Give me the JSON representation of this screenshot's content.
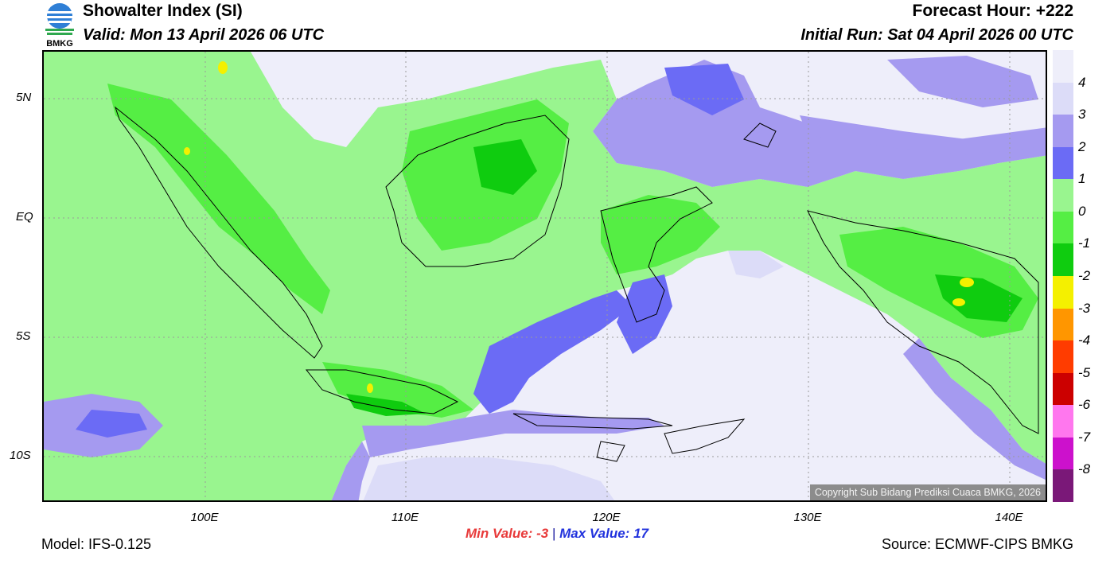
{
  "header": {
    "title": "Showalter Index (SI)",
    "valid": "Valid: Mon 13 April 2026 06 UTC",
    "forecast_hour": "Forecast Hour: +222",
    "initial_run": "Initial Run: Sat 04 April 2026 00 UTC",
    "logo_text": "BMKG"
  },
  "map": {
    "lat_labels": [
      "5N",
      "EQ",
      "5S",
      "10S"
    ],
    "lon_labels": [
      "100E",
      "110E",
      "120E",
      "130E",
      "140E"
    ],
    "copyright": "Copyright Sub Bidang Prediksi Cuaca BMKG, 2026"
  },
  "legend": {
    "labels": [
      "4",
      "3",
      "2",
      "1",
      "0",
      "-1",
      "-2",
      "-3",
      "-4",
      "-5",
      "-6",
      "-7",
      "-8"
    ],
    "colors": [
      "#eeeefa",
      "#dcdcf8",
      "#a59af0",
      "#6b6bf5",
      "#99f58f",
      "#55ee44",
      "#0fcc0f",
      "#f4f000",
      "#ff9600",
      "#ff3c00",
      "#cc0000",
      "#ff77ee",
      "#cc11cc",
      "#7a1878"
    ]
  },
  "stats": {
    "min_label": "Min Value:",
    "min_value": "-3",
    "separator": "|",
    "max_label": "Max Value:",
    "max_value": "17"
  },
  "footer": {
    "model": "Model: IFS-0.125",
    "source": "Source: ECMWF-CIPS BMKG"
  }
}
